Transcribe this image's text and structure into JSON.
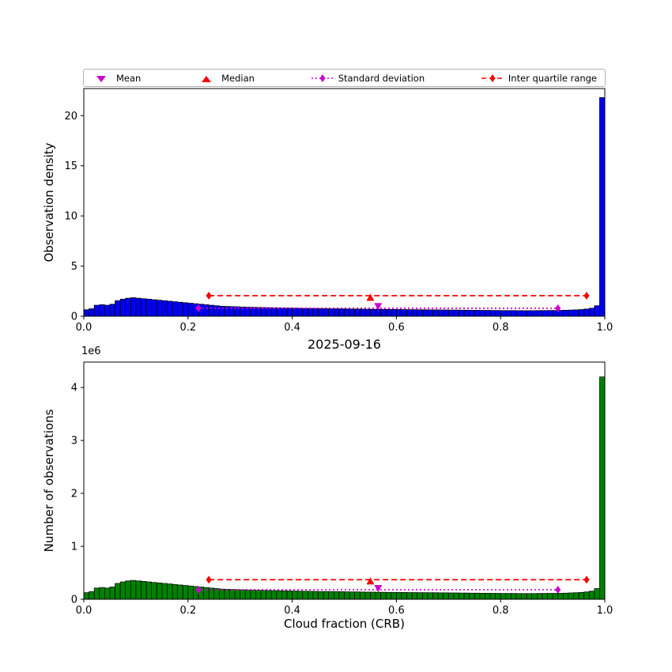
{
  "colors": {
    "blue_bar": "#0000ee",
    "green_bar": "#008000",
    "bar_edge": "#000000",
    "red": "#ff0000",
    "magenta": "#cc00cc",
    "axis": "#000000",
    "legend_border": "#b3b3b3",
    "background": "#ffffff"
  },
  "legend": {
    "items": [
      {
        "label": "Mean",
        "marker": "triangle-down",
        "color": "#cc00cc"
      },
      {
        "label": "Median",
        "marker": "triangle-up",
        "color": "#ff0000"
      },
      {
        "label": "Standard deviation",
        "marker": "diamond-dotted-line",
        "color": "#cc00cc"
      },
      {
        "label": "Inter quartile range",
        "marker": "diamond-dashed-line",
        "color": "#ff0000"
      }
    ]
  },
  "chart_data": [
    {
      "type": "bar",
      "name": "observation-density",
      "title": "",
      "xlabel": "",
      "ylabel": "Observation density",
      "xlim": [
        0.0,
        1.0
      ],
      "ylim": [
        0,
        22.7
      ],
      "xticks": [
        [
          0.0,
          "0.0"
        ],
        [
          0.2,
          "0.2"
        ],
        [
          0.4,
          "0.4"
        ],
        [
          0.6,
          "0.6"
        ],
        [
          0.8,
          "0.8"
        ],
        [
          1.0,
          "1.0"
        ]
      ],
      "yticks": [
        [
          0,
          "0"
        ],
        [
          5,
          "5"
        ],
        [
          10,
          "10"
        ],
        [
          15,
          "15"
        ],
        [
          20,
          "20"
        ]
      ],
      "bar_color": "#0000ee",
      "bin_start": 0.0,
      "bin_width": 0.01,
      "values": [
        0.65,
        0.75,
        1.1,
        1.15,
        1.1,
        1.2,
        1.55,
        1.7,
        1.8,
        1.85,
        1.8,
        1.75,
        1.7,
        1.65,
        1.6,
        1.55,
        1.5,
        1.45,
        1.4,
        1.35,
        1.3,
        1.25,
        1.2,
        1.15,
        1.1,
        1.05,
        1.0,
        0.98,
        0.96,
        0.94,
        0.92,
        0.9,
        0.89,
        0.88,
        0.87,
        0.86,
        0.85,
        0.84,
        0.83,
        0.82,
        0.81,
        0.8,
        0.79,
        0.78,
        0.77,
        0.76,
        0.76,
        0.75,
        0.75,
        0.74,
        0.73,
        0.72,
        0.72,
        0.71,
        0.7,
        0.7,
        0.69,
        0.69,
        0.68,
        0.68,
        0.67,
        0.67,
        0.66,
        0.66,
        0.65,
        0.65,
        0.64,
        0.64,
        0.63,
        0.63,
        0.62,
        0.62,
        0.61,
        0.61,
        0.6,
        0.6,
        0.59,
        0.59,
        0.58,
        0.58,
        0.57,
        0.57,
        0.57,
        0.56,
        0.56,
        0.56,
        0.56,
        0.57,
        0.57,
        0.58,
        0.58,
        0.59,
        0.6,
        0.62,
        0.64,
        0.67,
        0.72,
        0.8,
        1.05,
        21.8
      ],
      "stats": {
        "mean_x": 0.565,
        "mean_y": 1.0,
        "median_x": 0.55,
        "median_y": 1.85,
        "std_lo": 0.22,
        "std_hi": 0.91,
        "std_y": 0.8,
        "iqr_lo": 0.24,
        "iqr_hi": 0.965,
        "iqr_y": 2.05
      }
    },
    {
      "type": "bar",
      "name": "number-of-observations",
      "title": "2025-09-16",
      "xlabel": "Cloud fraction (CRB)",
      "ylabel": "Number of observations",
      "offset_text": "1e6",
      "xlim": [
        0.0,
        1.0
      ],
      "ylim": [
        0,
        4.48
      ],
      "xticks": [
        [
          0.0,
          "0.0"
        ],
        [
          0.2,
          "0.2"
        ],
        [
          0.4,
          "0.4"
        ],
        [
          0.6,
          "0.6"
        ],
        [
          0.8,
          "0.8"
        ],
        [
          1.0,
          "1.0"
        ]
      ],
      "yticks": [
        [
          0,
          "0"
        ],
        [
          1,
          "1"
        ],
        [
          2,
          "2"
        ],
        [
          3,
          "3"
        ],
        [
          4,
          "4"
        ]
      ],
      "bar_color": "#008000",
      "bin_start": 0.0,
      "bin_width": 0.01,
      "values": [
        0.125,
        0.145,
        0.212,
        0.222,
        0.212,
        0.232,
        0.299,
        0.328,
        0.347,
        0.357,
        0.347,
        0.338,
        0.328,
        0.318,
        0.309,
        0.299,
        0.29,
        0.28,
        0.27,
        0.261,
        0.251,
        0.241,
        0.232,
        0.222,
        0.212,
        0.203,
        0.193,
        0.189,
        0.185,
        0.181,
        0.178,
        0.174,
        0.172,
        0.17,
        0.168,
        0.166,
        0.164,
        0.162,
        0.16,
        0.158,
        0.156,
        0.154,
        0.152,
        0.151,
        0.149,
        0.147,
        0.147,
        0.145,
        0.145,
        0.143,
        0.141,
        0.139,
        0.139,
        0.137,
        0.135,
        0.135,
        0.133,
        0.133,
        0.131,
        0.131,
        0.129,
        0.129,
        0.127,
        0.127,
        0.125,
        0.125,
        0.124,
        0.124,
        0.122,
        0.122,
        0.12,
        0.12,
        0.118,
        0.118,
        0.116,
        0.116,
        0.114,
        0.114,
        0.112,
        0.112,
        0.11,
        0.11,
        0.11,
        0.108,
        0.108,
        0.108,
        0.108,
        0.11,
        0.11,
        0.112,
        0.112,
        0.114,
        0.116,
        0.12,
        0.124,
        0.129,
        0.139,
        0.154,
        0.203,
        4.2
      ],
      "stats": {
        "mean_x": 0.565,
        "mean_y": 0.21,
        "median_x": 0.55,
        "median_y": 0.34,
        "std_lo": 0.22,
        "std_hi": 0.91,
        "std_y": 0.18,
        "iqr_lo": 0.24,
        "iqr_hi": 0.965,
        "iqr_y": 0.37
      }
    }
  ]
}
